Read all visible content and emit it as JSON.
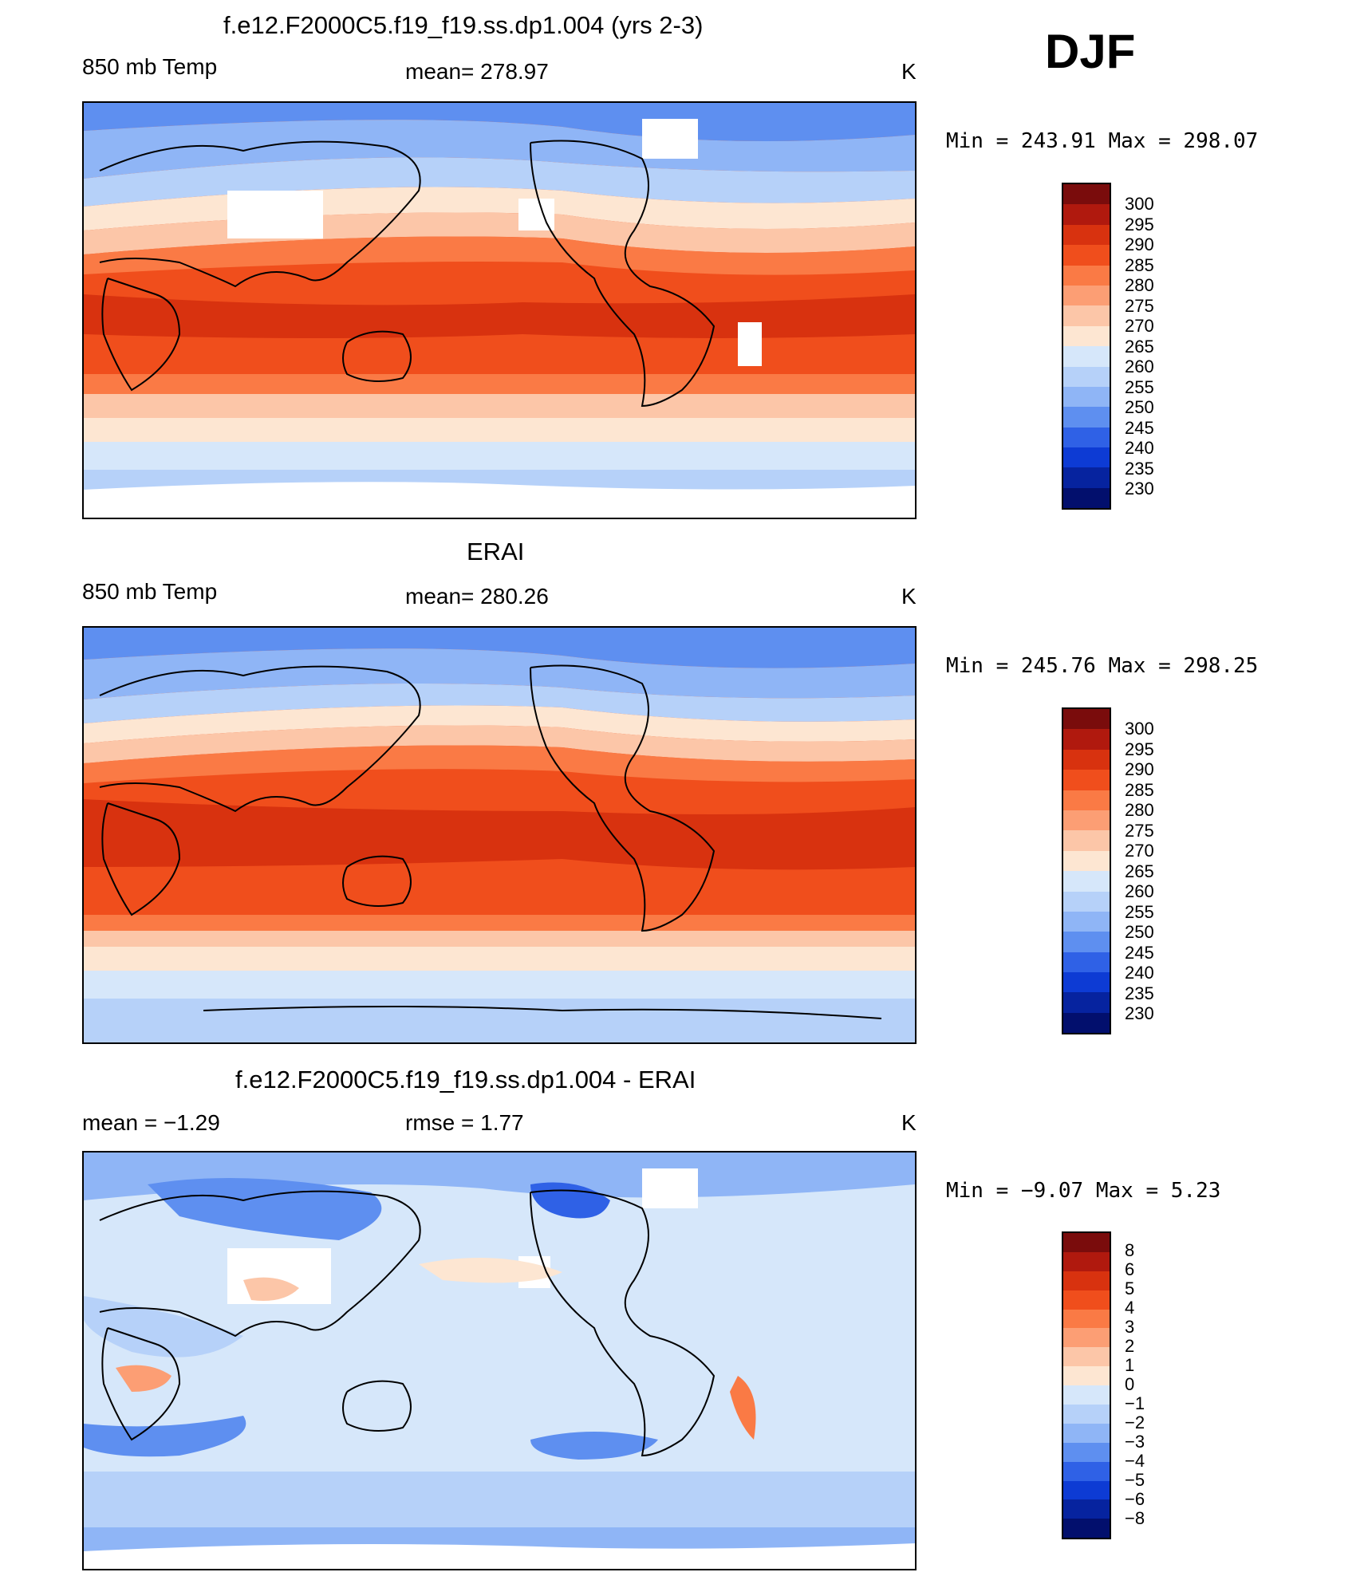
{
  "season": "DJF",
  "panels": [
    {
      "id": "model",
      "title": "f.e12.F2000C5.f19_f19.ss.dp1.004 (yrs 2-3)",
      "left_label": "850 mb Temp",
      "center_label": "mean=  278.97",
      "units": "K",
      "minmax": "Min  =  243.91  Max  =  298.07",
      "colorbar_labels": [
        "300",
        "295",
        "290",
        "285",
        "280",
        "275",
        "270",
        "265",
        "260",
        "255",
        "250",
        "245",
        "240",
        "235",
        "230"
      ]
    },
    {
      "id": "obs",
      "title": "ERAI",
      "left_label": "850 mb Temp",
      "center_label": "mean=  280.26",
      "units": "K",
      "minmax": "Min  =  245.76  Max  =  298.25",
      "colorbar_labels": [
        "300",
        "295",
        "290",
        "285",
        "280",
        "275",
        "270",
        "265",
        "260",
        "255",
        "250",
        "245",
        "240",
        "235",
        "230"
      ]
    },
    {
      "id": "diff",
      "title": "f.e12.F2000C5.f19_f19.ss.dp1.004 - ERAI",
      "left_label": "mean =    −1.29",
      "center_label": "rmse =     1.77",
      "units": "K",
      "minmax": "Min  =   −9.07  Max  =     5.23",
      "colorbar_labels": [
        "8",
        "6",
        "5",
        "4",
        "3",
        "2",
        "1",
        "0",
        "−1",
        "−2",
        "−3",
        "−4",
        "−5",
        "−6",
        "−8"
      ]
    }
  ],
  "colors": {
    "temp_scale": [
      "#7a0c0c",
      "#b0190e",
      "#d8320f",
      "#f04e1c",
      "#fa7a45",
      "#fc9e74",
      "#fcc6a8",
      "#fde6d2",
      "#d6e7fa",
      "#b6d1f9",
      "#8fb5f6",
      "#5e8ff0",
      "#2f61e6",
      "#0d3bd4",
      "#06239f",
      "#020f6d"
    ],
    "diff_scale": [
      "#7a0c0c",
      "#b0190e",
      "#d8320f",
      "#f04e1c",
      "#fa7a45",
      "#fc9e74",
      "#fcc6a8",
      "#fde6d2",
      "#d6e7fa",
      "#b6d1f9",
      "#8fb5f6",
      "#5e8ff0",
      "#2f61e6",
      "#0d3bd4",
      "#06239f",
      "#020f6d"
    ]
  }
}
